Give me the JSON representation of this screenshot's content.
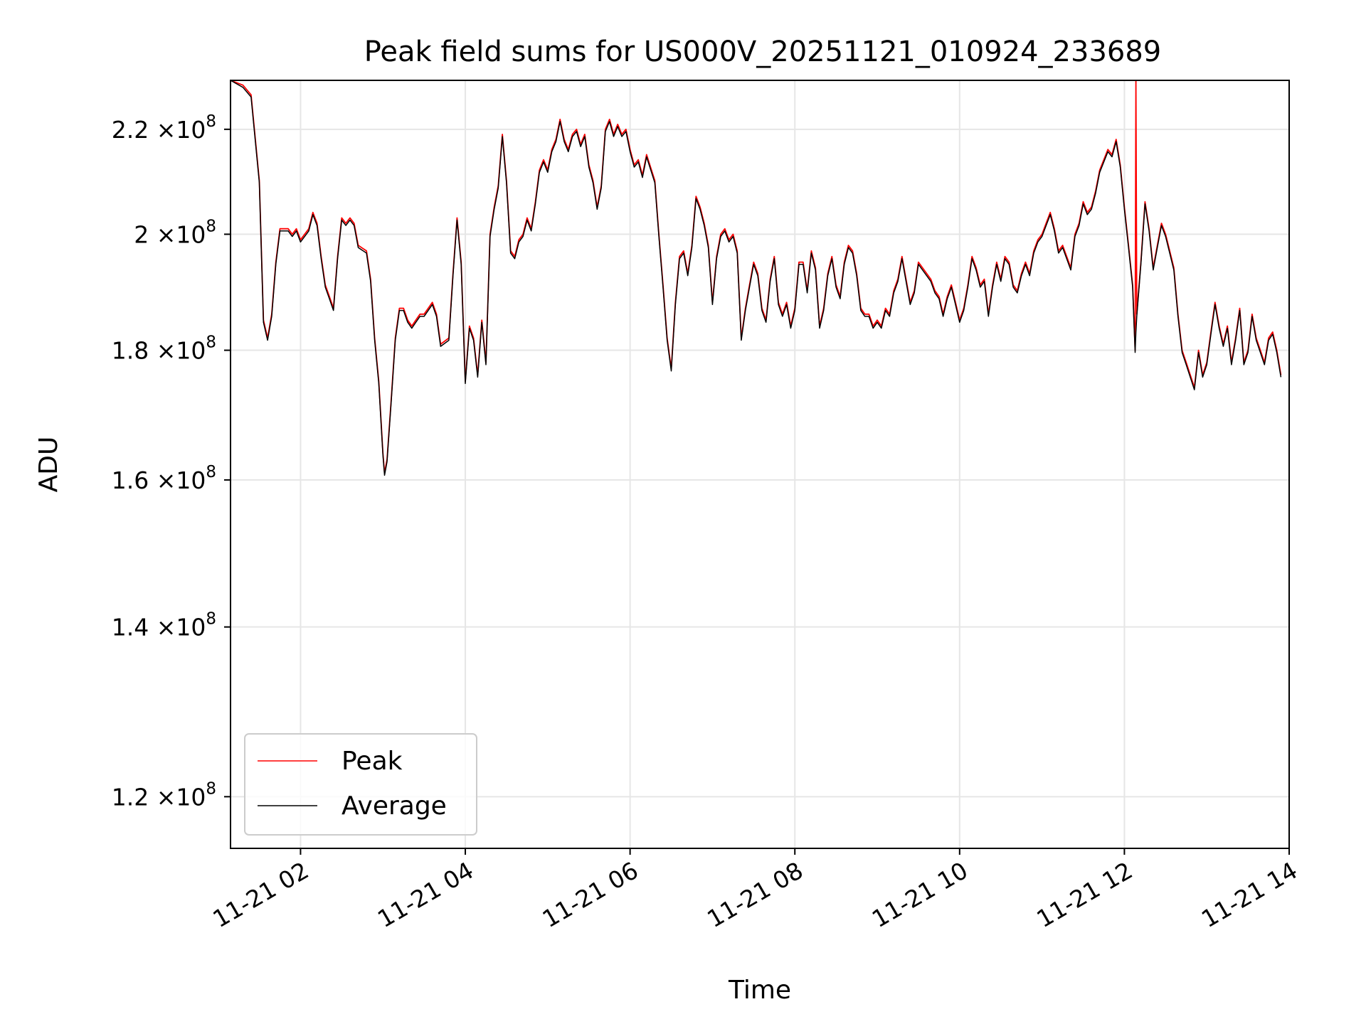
{
  "chart_data": {
    "type": "line",
    "title": "Peak field sums for US000V_20251121_010924_233689",
    "xlabel": "Time",
    "ylabel": "ADU",
    "yscale": "log",
    "xlim_hours": [
      1.15,
      14.0
    ],
    "ylim": [
      114500000,
      230000000
    ],
    "grid": true,
    "legend_placement": "lower-left",
    "x_ticks": [
      {
        "hour": 2,
        "label": "11-21 02"
      },
      {
        "hour": 4,
        "label": "11-21 04"
      },
      {
        "hour": 6,
        "label": "11-21 06"
      },
      {
        "hour": 8,
        "label": "11-21 08"
      },
      {
        "hour": 10,
        "label": "11-21 10"
      },
      {
        "hour": 12,
        "label": "11-21 12"
      },
      {
        "hour": 14,
        "label": "11-21 14"
      }
    ],
    "y_ticks": [
      {
        "value": 120000000,
        "mantissa": "1.2",
        "exp": "8"
      },
      {
        "value": 140000000,
        "mantissa": "1.4",
        "exp": "8"
      },
      {
        "value": 160000000,
        "mantissa": "1.6",
        "exp": "8"
      },
      {
        "value": 180000000,
        "mantissa": "1.8",
        "exp": "8"
      },
      {
        "value": 200000000,
        "mantissa": "2",
        "exp": "8"
      },
      {
        "value": 220000000,
        "mantissa": "2.2",
        "exp": "8"
      }
    ],
    "series": [
      {
        "name": "Peak",
        "color": "#ff0000",
        "points": [
          [
            1.15,
            231000000.0
          ],
          [
            1.3,
            229000000.0
          ],
          [
            1.4,
            227000000.0
          ],
          [
            1.5,
            210000000.0
          ],
          [
            1.55,
            185000000.0
          ],
          [
            1.6,
            182000000.0
          ],
          [
            1.65,
            186000000.0
          ],
          [
            1.7,
            195000000.0
          ],
          [
            1.75,
            201000000.0
          ],
          [
            1.85,
            201000000.0
          ],
          [
            1.9,
            200000000.0
          ],
          [
            1.95,
            201000000.0
          ],
          [
            2.0,
            199000000.0
          ],
          [
            2.1,
            201000000.0
          ],
          [
            2.15,
            204000000.0
          ],
          [
            2.2,
            202000000.0
          ],
          [
            2.25,
            196000000.0
          ],
          [
            2.3,
            191000000.0
          ],
          [
            2.35,
            189000000.0
          ],
          [
            2.4,
            187000000.0
          ],
          [
            2.45,
            196000000.0
          ],
          [
            2.5,
            203000000.0
          ],
          [
            2.55,
            202000000.0
          ],
          [
            2.6,
            203000000.0
          ],
          [
            2.65,
            202000000.0
          ],
          [
            2.7,
            198000000.0
          ],
          [
            2.8,
            197000000.0
          ],
          [
            2.85,
            192000000.0
          ],
          [
            2.9,
            182000000.0
          ],
          [
            2.95,
            175000000.0
          ],
          [
            3.0,
            164000000.0
          ],
          [
            3.02,
            161000000.0
          ],
          [
            3.05,
            163000000.0
          ],
          [
            3.1,
            172000000.0
          ],
          [
            3.15,
            182000000.0
          ],
          [
            3.2,
            187000000.0
          ],
          [
            3.25,
            187000000.0
          ],
          [
            3.3,
            185000000.0
          ],
          [
            3.35,
            184000000.0
          ],
          [
            3.4,
            185000000.0
          ],
          [
            3.45,
            186000000.0
          ],
          [
            3.5,
            186000000.0
          ],
          [
            3.55,
            187000000.0
          ],
          [
            3.6,
            188000000.0
          ],
          [
            3.65,
            186000000.0
          ],
          [
            3.7,
            181000000.0
          ],
          [
            3.8,
            182000000.0
          ],
          [
            3.85,
            193000000.0
          ],
          [
            3.9,
            203000000.0
          ],
          [
            3.95,
            195000000.0
          ],
          [
            4.0,
            175000000.0
          ],
          [
            4.05,
            184000000.0
          ],
          [
            4.1,
            182000000.0
          ],
          [
            4.15,
            176000000.0
          ],
          [
            4.2,
            185000000.0
          ],
          [
            4.25,
            178000000.0
          ],
          [
            4.3,
            200000000.0
          ],
          [
            4.35,
            205000000.0
          ],
          [
            4.4,
            209000000.0
          ],
          [
            4.45,
            219000000.0
          ],
          [
            4.5,
            210000000.0
          ],
          [
            4.55,
            197000000.0
          ],
          [
            4.6,
            196000000.0
          ],
          [
            4.65,
            199000000.0
          ],
          [
            4.7,
            200000000.0
          ],
          [
            4.75,
            203000000.0
          ],
          [
            4.8,
            201000000.0
          ],
          [
            4.85,
            206000000.0
          ],
          [
            4.9,
            212000000.0
          ],
          [
            4.95,
            214000000.0
          ],
          [
            5.0,
            212000000.0
          ],
          [
            5.05,
            216000000.0
          ],
          [
            5.1,
            218000000.0
          ],
          [
            5.15,
            222000000.0
          ],
          [
            5.2,
            218000000.0
          ],
          [
            5.25,
            216000000.0
          ],
          [
            5.3,
            219000000.0
          ],
          [
            5.35,
            220000000.0
          ],
          [
            5.4,
            217000000.0
          ],
          [
            5.45,
            219000000.0
          ],
          [
            5.5,
            213000000.0
          ],
          [
            5.55,
            210000000.0
          ],
          [
            5.6,
            205000000.0
          ],
          [
            5.65,
            209000000.0
          ],
          [
            5.7,
            220000000.0
          ],
          [
            5.75,
            222000000.0
          ],
          [
            5.8,
            219000000.0
          ],
          [
            5.85,
            221000000.0
          ],
          [
            5.9,
            219000000.0
          ],
          [
            5.95,
            220000000.0
          ],
          [
            6.0,
            216000000.0
          ],
          [
            6.05,
            213000000.0
          ],
          [
            6.1,
            214000000.0
          ],
          [
            6.15,
            211000000.0
          ],
          [
            6.2,
            215000000.0
          ],
          [
            6.3,
            210000000.0
          ],
          [
            6.35,
            200000000.0
          ],
          [
            6.4,
            191000000.0
          ],
          [
            6.45,
            182000000.0
          ],
          [
            6.5,
            177000000.0
          ],
          [
            6.55,
            188000000.0
          ],
          [
            6.6,
            196000000.0
          ],
          [
            6.65,
            197000000.0
          ],
          [
            6.7,
            193000000.0
          ],
          [
            6.75,
            198000000.0
          ],
          [
            6.8,
            207000000.0
          ],
          [
            6.85,
            205000000.0
          ],
          [
            6.9,
            202000000.0
          ],
          [
            6.95,
            198000000.0
          ],
          [
            7.0,
            188000000.0
          ],
          [
            7.05,
            196000000.0
          ],
          [
            7.1,
            200000000.0
          ],
          [
            7.15,
            201000000.0
          ],
          [
            7.2,
            199000000.0
          ],
          [
            7.25,
            200000000.0
          ],
          [
            7.3,
            197000000.0
          ],
          [
            7.35,
            182000000.0
          ],
          [
            7.4,
            187000000.0
          ],
          [
            7.45,
            191000000.0
          ],
          [
            7.5,
            195000000.0
          ],
          [
            7.55,
            193000000.0
          ],
          [
            7.6,
            187000000.0
          ],
          [
            7.65,
            185000000.0
          ],
          [
            7.7,
            192000000.0
          ],
          [
            7.75,
            196000000.0
          ],
          [
            7.8,
            188000000.0
          ],
          [
            7.85,
            186000000.0
          ],
          [
            7.9,
            188000000.0
          ],
          [
            7.95,
            184000000.0
          ],
          [
            8.0,
            187000000.0
          ],
          [
            8.05,
            195000000.0
          ],
          [
            8.1,
            195000000.0
          ],
          [
            8.15,
            190000000.0
          ],
          [
            8.2,
            197000000.0
          ],
          [
            8.25,
            194000000.0
          ],
          [
            8.3,
            184000000.0
          ],
          [
            8.35,
            187000000.0
          ],
          [
            8.4,
            193000000.0
          ],
          [
            8.45,
            196000000.0
          ],
          [
            8.5,
            191000000.0
          ],
          [
            8.55,
            189000000.0
          ],
          [
            8.6,
            195000000.0
          ],
          [
            8.65,
            198000000.0
          ],
          [
            8.7,
            197000000.0
          ],
          [
            8.75,
            193000000.0
          ],
          [
            8.8,
            187000000.0
          ],
          [
            8.85,
            186000000.0
          ],
          [
            8.9,
            186000000.0
          ],
          [
            8.95,
            184000000.0
          ],
          [
            9.0,
            185000000.0
          ],
          [
            9.05,
            184000000.0
          ],
          [
            9.1,
            187000000.0
          ],
          [
            9.15,
            186000000.0
          ],
          [
            9.2,
            190000000.0
          ],
          [
            9.25,
            192000000.0
          ],
          [
            9.3,
            196000000.0
          ],
          [
            9.35,
            192000000.0
          ],
          [
            9.4,
            188000000.0
          ],
          [
            9.45,
            190000000.0
          ],
          [
            9.5,
            195000000.0
          ],
          [
            9.55,
            194000000.0
          ],
          [
            9.6,
            193000000.0
          ],
          [
            9.65,
            192000000.0
          ],
          [
            9.7,
            190000000.0
          ],
          [
            9.75,
            189000000.0
          ],
          [
            9.8,
            186000000.0
          ],
          [
            9.85,
            189000000.0
          ],
          [
            9.9,
            191000000.0
          ],
          [
            9.95,
            188000000.0
          ],
          [
            10.0,
            185000000.0
          ],
          [
            10.05,
            187000000.0
          ],
          [
            10.1,
            191000000.0
          ],
          [
            10.15,
            196000000.0
          ],
          [
            10.2,
            194000000.0
          ],
          [
            10.25,
            191000000.0
          ],
          [
            10.3,
            192000000.0
          ],
          [
            10.35,
            186000000.0
          ],
          [
            10.4,
            191000000.0
          ],
          [
            10.45,
            195000000.0
          ],
          [
            10.5,
            192000000.0
          ],
          [
            10.55,
            196000000.0
          ],
          [
            10.6,
            195000000.0
          ],
          [
            10.65,
            191000000.0
          ],
          [
            10.7,
            190000000.0
          ],
          [
            10.75,
            193000000.0
          ],
          [
            10.8,
            195000000.0
          ],
          [
            10.85,
            193000000.0
          ],
          [
            10.9,
            197000000.0
          ],
          [
            10.95,
            199000000.0
          ],
          [
            11.0,
            200000000.0
          ],
          [
            11.05,
            202000000.0
          ],
          [
            11.1,
            204000000.0
          ],
          [
            11.15,
            201000000.0
          ],
          [
            11.2,
            197000000.0
          ],
          [
            11.25,
            198000000.0
          ],
          [
            11.3,
            196000000.0
          ],
          [
            11.35,
            194000000.0
          ],
          [
            11.4,
            200000000.0
          ],
          [
            11.45,
            202000000.0
          ],
          [
            11.5,
            206000000.0
          ],
          [
            11.55,
            204000000.0
          ],
          [
            11.6,
            205000000.0
          ],
          [
            11.65,
            208000000.0
          ],
          [
            11.7,
            212000000.0
          ],
          [
            11.75,
            214000000.0
          ],
          [
            11.8,
            216000000.0
          ],
          [
            11.85,
            215000000.0
          ],
          [
            11.9,
            218000000.0
          ],
          [
            11.95,
            213000000.0
          ],
          [
            12.0,
            205000000.0
          ],
          [
            12.05,
            198000000.0
          ],
          [
            12.1,
            191000000.0
          ],
          [
            12.13,
            180000000.0
          ],
          [
            12.14,
            231000000.0
          ],
          [
            12.15,
            186000000.0
          ],
          [
            12.2,
            195000000.0
          ],
          [
            12.25,
            206000000.0
          ],
          [
            12.3,
            201000000.0
          ],
          [
            12.35,
            194000000.0
          ],
          [
            12.4,
            198000000.0
          ],
          [
            12.45,
            202000000.0
          ],
          [
            12.5,
            200000000.0
          ],
          [
            12.55,
            197000000.0
          ],
          [
            12.6,
            194000000.0
          ],
          [
            12.65,
            186000000.0
          ],
          [
            12.7,
            180000000.0
          ],
          [
            12.75,
            178000000.0
          ],
          [
            12.8,
            176000000.0
          ],
          [
            12.85,
            174000000.0
          ],
          [
            12.9,
            180000000.0
          ],
          [
            12.95,
            176000000.0
          ],
          [
            13.0,
            178000000.0
          ],
          [
            13.05,
            183000000.0
          ],
          [
            13.1,
            188000000.0
          ],
          [
            13.15,
            184000000.0
          ],
          [
            13.2,
            181000000.0
          ],
          [
            13.25,
            184000000.0
          ],
          [
            13.3,
            178000000.0
          ],
          [
            13.35,
            182000000.0
          ],
          [
            13.4,
            187000000.0
          ],
          [
            13.45,
            178000000.0
          ],
          [
            13.5,
            180000000.0
          ],
          [
            13.55,
            186000000.0
          ],
          [
            13.6,
            182000000.0
          ],
          [
            13.65,
            180000000.0
          ],
          [
            13.7,
            178000000.0
          ],
          [
            13.75,
            182000000.0
          ],
          [
            13.8,
            183000000.0
          ],
          [
            13.85,
            180000000.0
          ],
          [
            13.9,
            176000000.0
          ]
        ]
      },
      {
        "name": "Average",
        "color": "#000000",
        "points": []
      }
    ]
  },
  "legend": {
    "entries": [
      {
        "label": "Peak",
        "color": "#ff0000"
      },
      {
        "label": "Average",
        "color": "#000000"
      }
    ]
  },
  "tick_times_label": "×10"
}
